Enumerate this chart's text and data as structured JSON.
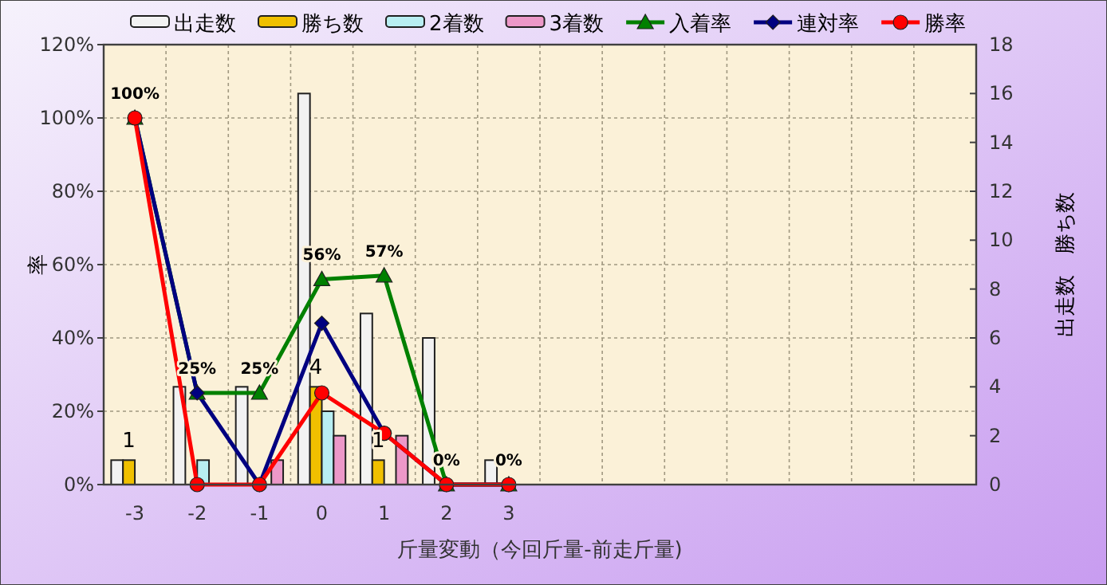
{
  "chart_data": {
    "type": "bar",
    "xlabel": "斤量変動（今回斤量-前走斤量)",
    "ylabel": "率",
    "y2label": "出走数　勝ち数",
    "categories": [
      "-3",
      "-2",
      "-1",
      "0",
      "1",
      "2",
      "3",
      null,
      null,
      null,
      null,
      null,
      null,
      null
    ],
    "series": [
      {
        "name": "出走数",
        "axis": "y2",
        "color": "#f2f2f2",
        "values": [
          1,
          4,
          4,
          16,
          7,
          6,
          1,
          null,
          null,
          null,
          null,
          null,
          null,
          null
        ]
      },
      {
        "name": "勝ち数",
        "axis": "y2",
        "color": "#f0c000",
        "values": [
          1,
          0,
          0,
          4,
          1,
          0,
          0,
          null,
          null,
          null,
          null,
          null,
          null,
          null
        ],
        "value_labels": [
          "1",
          null,
          null,
          "4",
          "1",
          null,
          null,
          null,
          null,
          null,
          null,
          null,
          null,
          null
        ]
      },
      {
        "name": "2着数",
        "axis": "y2",
        "color": "#b8eef2",
        "values": [
          0,
          1,
          0,
          3,
          0,
          0,
          0,
          null,
          null,
          null,
          null,
          null,
          null,
          null
        ]
      },
      {
        "name": "3着数",
        "axis": "y2",
        "color": "#ec98c8",
        "values": [
          0,
          0,
          1,
          2,
          2,
          0,
          0,
          null,
          null,
          null,
          null,
          null,
          null,
          null
        ]
      },
      {
        "name": "入着率",
        "type": "line",
        "axis": "y",
        "color": "#008000",
        "marker": "triangle",
        "values": [
          100,
          25,
          25,
          56,
          57,
          0,
          0,
          null,
          null,
          null,
          null,
          null,
          null,
          null
        ],
        "value_labels": [
          "100%",
          "25%",
          "25%",
          "56%",
          "57%",
          "0%",
          "0%",
          null,
          null,
          null,
          null,
          null,
          null,
          null
        ]
      },
      {
        "name": "連対率",
        "type": "line",
        "axis": "y",
        "color": "#000080",
        "marker": "diamond",
        "values": [
          100,
          25,
          0,
          44,
          14,
          0,
          0,
          null,
          null,
          null,
          null,
          null,
          null,
          null
        ]
      },
      {
        "name": "勝率",
        "type": "line",
        "axis": "y",
        "color": "#ff0000",
        "marker": "circle",
        "values": [
          100,
          0,
          0,
          25,
          14,
          0,
          0,
          null,
          null,
          null,
          null,
          null,
          null,
          null
        ]
      }
    ],
    "ylim": [
      0,
      120
    ],
    "yticks": [
      {
        "value": 0,
        "label": "0%"
      },
      {
        "value": 20,
        "label": "20%"
      },
      {
        "value": 40,
        "label": "40%"
      },
      {
        "value": 60,
        "label": "60%"
      },
      {
        "value": 80,
        "label": "80%"
      },
      {
        "value": 100,
        "label": "100%"
      },
      {
        "value": 120,
        "label": "120%"
      }
    ],
    "y2lim": [
      0,
      18
    ],
    "y2ticks": [
      0,
      2,
      4,
      6,
      8,
      10,
      12,
      14,
      16,
      18
    ],
    "grid": true,
    "legend": "top"
  }
}
